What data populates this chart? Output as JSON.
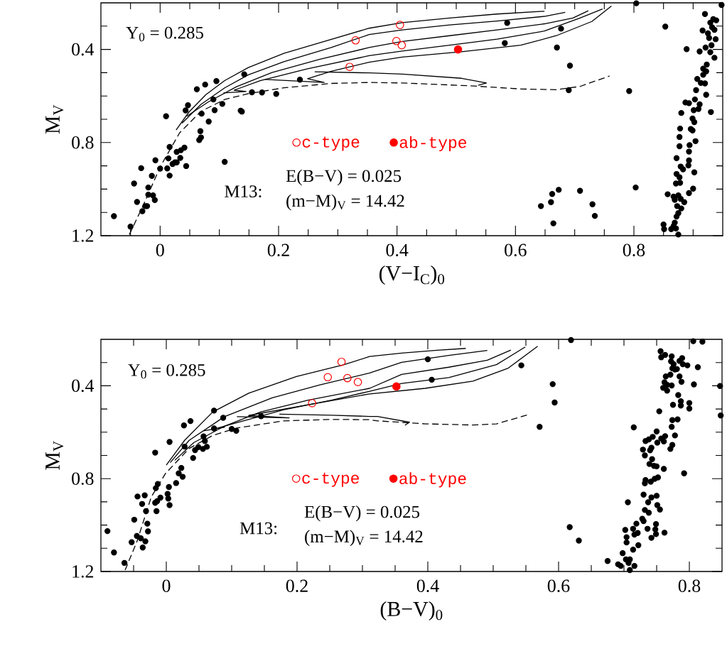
{
  "chart_data": [
    {
      "type": "scatter",
      "xlabel": "(V−I$_{C}$)$_{0}$",
      "ylabel": "M$_{V}$",
      "xlim": [
        -0.1,
        0.95
      ],
      "ylim": [
        1.2,
        0.2
      ],
      "xticks": [
        {
          "value": -0.05,
          "label": null
        },
        0,
        {
          "value": 0.05,
          "label": null
        },
        {
          "value": 0.1,
          "label": null
        },
        {
          "value": 0.15,
          "label": null
        },
        0.2,
        {
          "value": 0.25,
          "label": null
        },
        {
          "value": 0.3,
          "label": null
        },
        {
          "value": 0.35,
          "label": null
        },
        0.4,
        {
          "value": 0.45,
          "label": null
        },
        {
          "value": 0.5,
          "label": null
        },
        {
          "value": 0.55,
          "label": null
        },
        0.6,
        {
          "value": 0.65,
          "label": null
        },
        {
          "value": 0.7,
          "label": null
        },
        {
          "value": 0.75,
          "label": null
        },
        0.8,
        {
          "value": 0.85,
          "label": null
        },
        {
          "value": 0.9,
          "label": null
        }
      ],
      "yticks": [
        {
          "value": 0.3,
          "label": null
        },
        0.4,
        {
          "value": 0.5,
          "label": null
        },
        {
          "value": 0.6,
          "label": null
        },
        {
          "value": 0.7,
          "label": null
        },
        0.8,
        {
          "value": 0.9,
          "label": null
        },
        {
          "value": 1.0,
          "label": null
        },
        {
          "value": 1.1,
          "label": null
        },
        1.2
      ],
      "legend": "center",
      "annotations": [
        "Y$_{0}$ = 0.285",
        "M13:",
        "E(B−V) = 0.025",
        "(m−M)$_{V}$ = 14.42"
      ],
      "series": [
        {
          "type": "line",
          "color": "#000000",
          "line_style": "solid",
          "x": [
            0.027,
            0.049,
            0.077,
            0.109,
            0.149,
            0.209,
            0.269,
            0.353,
            0.409,
            0.489,
            0.569,
            0.649
          ],
          "values": [
            0.746,
            0.668,
            0.595,
            0.534,
            0.478,
            0.417,
            0.372,
            0.309,
            0.285,
            0.265,
            0.248,
            0.236
          ]
        },
        {
          "type": "line",
          "color": "#000000",
          "line_style": "solid",
          "x": [
            0.037,
            0.069,
            0.109,
            0.149,
            0.209,
            0.289,
            0.353,
            0.409,
            0.489,
            0.569,
            0.649,
            0.684
          ],
          "values": [
            0.717,
            0.636,
            0.565,
            0.509,
            0.453,
            0.392,
            0.336,
            0.316,
            0.295,
            0.278,
            0.258,
            0.241
          ]
        },
        {
          "type": "line",
          "color": "#000000",
          "line_style": "solid",
          "x": [
            0.045,
            0.081,
            0.129,
            0.189,
            0.269,
            0.353,
            0.409,
            0.489,
            0.569,
            0.649,
            0.697,
            0.723
          ],
          "values": [
            0.687,
            0.626,
            0.56,
            0.499,
            0.443,
            0.392,
            0.366,
            0.341,
            0.316,
            0.29,
            0.265,
            0.234
          ]
        },
        {
          "type": "line",
          "color": "#000000",
          "line_style": "solid",
          "x": [
            0.107,
            0.145,
            0.125,
            0.169,
            0.249,
            0.353,
            0.409,
            0.489,
            0.569,
            0.649,
            0.709,
            0.747
          ],
          "values": [
            0.587,
            0.581,
            0.575,
            0.534,
            0.483,
            0.427,
            0.407,
            0.382,
            0.356,
            0.321,
            0.265,
            0.226
          ]
        },
        {
          "type": "line",
          "color": "#000000",
          "line_style": "solid",
          "x": [
            0.177,
            0.277,
            0.249,
            0.289,
            0.353,
            0.409,
            0.509,
            0.609,
            0.669,
            0.729,
            0.762
          ],
          "values": [
            0.529,
            0.542,
            0.526,
            0.494,
            0.455,
            0.433,
            0.41,
            0.382,
            0.341,
            0.28,
            0.214
          ]
        },
        {
          "type": "line",
          "color": "#000000",
          "line_style": "solid",
          "x": [
            0.261,
            0.353,
            0.409,
            0.509,
            0.551,
            0.537
          ],
          "values": [
            0.496,
            0.501,
            0.506,
            0.524,
            0.544,
            0.554
          ]
        },
        {
          "type": "line",
          "color": "#000000",
          "line_style": "dashed",
          "x": [
            -0.052,
            -0.031,
            0.001,
            0.033,
            0.069,
            0.109,
            0.149,
            0.209,
            0.289,
            0.353,
            0.409,
            0.529,
            0.609,
            0.669,
            0.709,
            0.759
          ],
          "values": [
            1.195,
            1.083,
            0.9,
            0.758,
            0.666,
            0.615,
            0.59,
            0.565,
            0.546,
            0.542,
            0.544,
            0.557,
            0.57,
            0.573,
            0.559,
            0.514
          ]
        },
        {
          "color": "#000000",
          "marker": "circle",
          "x": [
            -0.078,
            -0.05,
            -0.044,
            -0.032,
            -0.039,
            -0.03,
            -0.025,
            -0.022,
            -0.02,
            -0.02,
            -0.014,
            -0.012,
            -0.009,
            -0.008,
            0.0,
            0.01,
            0.012,
            0.014,
            0.016,
            0.016,
            0.021,
            0.025,
            0.028,
            0.028,
            0.034,
            0.035,
            0.041,
            0.044,
            0.043,
            0.047,
            0.062,
            0.076,
            0.095,
            0.09,
            0.092,
            0.082,
            0.068,
            0.069,
            0.066,
            0.07,
            0.105,
            0.109,
            0.136,
            0.138,
            0.142,
            0.155,
            0.172,
            0.196,
            0.236,
            0.586,
            0.582,
            0.677,
            0.67,
            0.692,
            0.69,
            0.792,
            0.804,
            0.853,
            0.889,
            0.948,
            0.643,
            0.66,
            0.662,
            0.673,
            0.664,
            0.709,
            0.73,
            0.734,
            0.803,
            0.92,
            0.929,
            0.934,
            0.939,
            0.932,
            0.916,
            0.936,
            0.925,
            0.938,
            0.927,
            0.931,
            0.921,
            0.911,
            0.929,
            0.936,
            0.923,
            0.917,
            0.922,
            0.917,
            0.907,
            0.913,
            0.92,
            0.905,
            0.922,
            0.903,
            0.887,
            0.893,
            0.911,
            0.909,
            0.901,
            0.93,
            0.88,
            0.899,
            0.902,
            0.896,
            0.878,
            0.899,
            0.877,
            0.904,
            0.894,
            0.877,
            0.893,
            0.872,
            0.893,
            0.879,
            0.892,
            0.902,
            0.883,
            0.872,
            0.877,
            0.871,
            0.878,
            0.9,
            0.893,
            0.857,
            0.867,
            0.875,
            0.879,
            0.869,
            0.885,
            0.873,
            0.88,
            0.875,
            0.872,
            0.869,
            0.85,
            0.867,
            0.851,
            0.863,
            0.871,
            0.875
          ],
          "values": [
            1.116,
            1.161,
            0.976,
            0.91,
            1.055,
            1.095,
            1.073,
            1.073,
            0.993,
            1.024,
            0.943,
            1.027,
            1.047,
            0.876,
            0.912,
            0.687,
            0.911,
            0.868,
            0.942,
            0.819,
            0.892,
            0.885,
            0.84,
            0.885,
            0.866,
            0.833,
            0.822,
            0.901,
            0.662,
            0.64,
            0.571,
            0.551,
            0.536,
            0.615,
            0.661,
            0.71,
            0.751,
            0.778,
            0.789,
            0.676,
            0.634,
            0.883,
            0.663,
            0.667,
            0.507,
            0.584,
            0.585,
            0.591,
            0.53,
            0.286,
            0.373,
            0.311,
            0.392,
            0.47,
            0.575,
            0.579,
            0.202,
            0.302,
            0.399,
            0.209,
            1.073,
            1.056,
            1.021,
            1.003,
            1.147,
            1.007,
            1.065,
            1.115,
            0.993,
            0.248,
            0.285,
            0.27,
            0.275,
            0.305,
            0.319,
            0.316,
            0.331,
            0.356,
            0.351,
            0.382,
            0.392,
            0.409,
            0.412,
            0.436,
            0.465,
            0.483,
            0.494,
            0.509,
            0.527,
            0.544,
            0.546,
            0.575,
            0.595,
            0.615,
            0.628,
            0.631,
            0.636,
            0.656,
            0.661,
            0.669,
            0.673,
            0.697,
            0.712,
            0.742,
            0.74,
            0.748,
            0.776,
            0.794,
            0.811,
            0.816,
            0.839,
            0.867,
            0.877,
            0.903,
            0.898,
            0.928,
            0.915,
            0.935,
            0.949,
            0.976,
            0.973,
            0.998,
            1.017,
            1.022,
            1.032,
            1.027,
            1.042,
            1.046,
            1.056,
            1.073,
            1.083,
            1.103,
            1.118,
            1.144,
            1.152,
            1.159,
            1.172,
            1.172,
            1.169,
            1.195
          ]
        },
        {
          "name": "c-type",
          "color": "#ff0000",
          "marker": "circle",
          "x": [
            0.32,
            0.33,
            0.399,
            0.405,
            0.408
          ],
          "values": [
            0.475,
            0.361,
            0.364,
            0.295,
            0.382
          ]
        },
        {
          "name": "ab-type",
          "color": "#ff0000",
          "marker": "circle",
          "x": [
            0.503
          ],
          "values": [
            0.4
          ]
        }
      ]
    },
    {
      "type": "scatter",
      "xlabel": "(B−V)$_{0}$",
      "ylabel": "M$_{V}$",
      "xlim": [
        -0.1,
        0.85
      ],
      "ylim": [
        1.2,
        0.2
      ],
      "xticks": [
        {
          "value": -0.05,
          "label": null
        },
        0,
        {
          "value": 0.05,
          "label": null
        },
        {
          "value": 0.1,
          "label": null
        },
        {
          "value": 0.15,
          "label": null
        },
        0.2,
        {
          "value": 0.25,
          "label": null
        },
        {
          "value": 0.3,
          "label": null
        },
        {
          "value": 0.35,
          "label": null
        },
        0.4,
        {
          "value": 0.45,
          "label": null
        },
        {
          "value": 0.5,
          "label": null
        },
        {
          "value": 0.55,
          "label": null
        },
        0.6,
        {
          "value": 0.65,
          "label": null
        },
        {
          "value": 0.7,
          "label": null
        },
        {
          "value": 0.75,
          "label": null
        },
        0.8
      ],
      "yticks": [
        {
          "value": 0.3,
          "label": null
        },
        0.4,
        {
          "value": 0.5,
          "label": null
        },
        {
          "value": 0.6,
          "label": null
        },
        {
          "value": 0.7,
          "label": null
        },
        0.8,
        {
          "value": 0.9,
          "label": null
        },
        {
          "value": 1.0,
          "label": null
        },
        {
          "value": 1.1,
          "label": null
        },
        1.2
      ],
      "legend": "center",
      "annotations": [
        "Y$_{0}$ = 0.285",
        "M13:",
        "E(B−V) = 0.025",
        "(m−M)$_{V}$ = 14.42"
      ],
      "series": [
        {
          "type": "line",
          "color": "#000000",
          "line_style": "solid",
          "x": [
            0.0,
            0.028,
            0.071,
            0.126,
            0.199,
            0.271,
            0.311,
            0.36,
            0.414,
            0.458
          ],
          "values": [
            0.742,
            0.635,
            0.513,
            0.432,
            0.36,
            0.31,
            0.274,
            0.259,
            0.247,
            0.239
          ]
        },
        {
          "type": "line",
          "color": "#000000",
          "line_style": "solid",
          "x": [
            0.006,
            0.035,
            0.089,
            0.162,
            0.235,
            0.311,
            0.36,
            0.432,
            0.491
          ],
          "values": [
            0.731,
            0.635,
            0.533,
            0.452,
            0.396,
            0.345,
            0.299,
            0.269,
            0.248
          ]
        },
        {
          "type": "line",
          "color": "#000000",
          "line_style": "solid",
          "x": [
            0.013,
            0.042,
            0.089,
            0.144,
            0.217,
            0.311,
            0.36,
            0.432,
            0.491,
            0.527
          ],
          "values": [
            0.721,
            0.645,
            0.574,
            0.513,
            0.462,
            0.411,
            0.351,
            0.32,
            0.29,
            0.246
          ]
        },
        {
          "type": "line",
          "color": "#000000",
          "line_style": "solid",
          "x": [
            0.057,
            0.089,
            0.075,
            0.108,
            0.18,
            0.253,
            0.309,
            0.36,
            0.432,
            0.505,
            0.549
          ],
          "values": [
            0.594,
            0.579,
            0.585,
            0.559,
            0.503,
            0.462,
            0.425,
            0.39,
            0.365,
            0.309,
            0.233
          ]
        },
        {
          "type": "line",
          "color": "#000000",
          "line_style": "solid",
          "x": [
            0.108,
            0.188,
            0.126,
            0.217,
            0.309,
            0.396,
            0.469,
            0.523,
            0.568
          ],
          "values": [
            0.533,
            0.538,
            0.528,
            0.482,
            0.436,
            0.411,
            0.38,
            0.324,
            0.23
          ]
        },
        {
          "type": "line",
          "color": "#000000",
          "line_style": "solid",
          "x": [
            0.173,
            0.253,
            0.311,
            0.323,
            0.372,
            0.365
          ],
          "values": [
            0.522,
            0.527,
            0.532,
            0.532,
            0.557,
            0.57
          ]
        },
        {
          "type": "line",
          "color": "#000000",
          "line_style": "dashed",
          "x": [
            -0.063,
            -0.045,
            -0.023,
            -0.001,
            0.035,
            0.071,
            0.108,
            0.18,
            0.253,
            0.311,
            0.323,
            0.396,
            0.469,
            0.505,
            0.552
          ],
          "values": [
            1.194,
            1.072,
            0.879,
            0.777,
            0.67,
            0.614,
            0.582,
            0.551,
            0.545,
            0.546,
            0.551,
            0.564,
            0.569,
            0.564,
            0.526
          ]
        },
        {
          "color": "#000000",
          "marker": "circle",
          "x": [
            -0.09,
            -0.08,
            -0.064,
            -0.053,
            -0.049,
            -0.045,
            -0.044,
            -0.039,
            -0.037,
            -0.036,
            -0.033,
            -0.032,
            -0.031,
            -0.029,
            -0.028,
            -0.017,
            -0.016,
            -0.017,
            -0.015,
            -0.014,
            -0.013,
            -0.009,
            0.002,
            0.003,
            0.004,
            0.005,
            0.005,
            0.015,
            0.019,
            0.023,
            0.025,
            0.027,
            0.028,
            0.037,
            0.041,
            0.044,
            0.049,
            0.056,
            0.057,
            0.059,
            0.062,
            0.073,
            0.073,
            0.087,
            0.1,
            0.107,
            0.145,
            0.4,
            0.406,
            0.543,
            0.591,
            0.594,
            0.571,
            0.619,
            0.617,
            0.631,
            0.806,
            0.82,
            0.847,
            0.848,
            0.813,
            0.807,
            0.8,
            0.8,
            0.792,
            0.715,
            0.706,
            0.675,
            0.756,
            0.763,
            0.757,
            0.773,
            0.772,
            0.785,
            0.789,
            0.776,
            0.79,
            0.797,
            0.774,
            0.781,
            0.778,
            0.764,
            0.771,
            0.785,
            0.788,
            0.762,
            0.766,
            0.773,
            0.76,
            0.766,
            0.783,
            0.787,
            0.787,
            0.775,
            0.754,
            0.774,
            0.782,
            0.773,
            0.778,
            0.763,
            0.757,
            0.761,
            0.75,
            0.744,
            0.738,
            0.733,
            0.751,
            0.774,
            0.771,
            0.742,
            0.729,
            0.74,
            0.732,
            0.743,
            0.739,
            0.746,
            0.75,
            0.761,
            0.752,
            0.747,
            0.741,
            0.733,
            0.732,
            0.73,
            0.742,
            0.75,
            0.737,
            0.751,
            0.755,
            0.732,
            0.738,
            0.728,
            0.73,
            0.749,
            0.719,
            0.714,
            0.702,
            0.736,
            0.748,
            0.721,
            0.716,
            0.749,
            0.762,
            0.704,
            0.742,
            0.704,
            0.722,
            0.714,
            0.698,
            0.703,
            0.709,
            0.707,
            0.691,
            0.695,
            0.716,
            0.709
          ],
          "values": [
            1.026,
            1.118,
            1.163,
            1.074,
            0.977,
            1.047,
            0.877,
            1.057,
            0.909,
            1.097,
            0.872,
            1.07,
            0.94,
            0.994,
            1.027,
            0.688,
            0.841,
            0.904,
            0.94,
            0.897,
            0.823,
            0.882,
            0.866,
            0.886,
            0.836,
            0.642,
            0.914,
            0.819,
            0.777,
            0.754,
            0.792,
            0.571,
            0.662,
            0.552,
            0.711,
            0.677,
            0.664,
            0.672,
            0.618,
            0.638,
            0.663,
            0.507,
            0.584,
            0.538,
            0.586,
            0.594,
            0.531,
            0.286,
            0.374,
            0.312,
            0.393,
            0.472,
            0.577,
            0.203,
            1.009,
            1.067,
            0.208,
            0.21,
            0.401,
            0.528,
            0.32,
            0.394,
            0.474,
            0.498,
            0.777,
            0.579,
            0.902,
            1.155,
            0.251,
            0.267,
            0.277,
            0.273,
            0.295,
            0.293,
            0.281,
            0.307,
            0.307,
            0.312,
            0.325,
            0.328,
            0.33,
            0.36,
            0.352,
            0.36,
            0.383,
            0.385,
            0.396,
            0.399,
            0.409,
            0.421,
            0.44,
            0.467,
            0.485,
            0.482,
            0.51,
            0.548,
            0.545,
            0.577,
            0.614,
            0.617,
            0.627,
            0.64,
            0.597,
            0.62,
            0.631,
            0.638,
            0.645,
            0.655,
            0.672,
            0.667,
            0.675,
            0.678,
            0.7,
            0.716,
            0.737,
            0.745,
            0.747,
            0.758,
            0.795,
            0.801,
            0.813,
            0.806,
            0.82,
            0.869,
            0.881,
            0.874,
            0.902,
            0.914,
            0.933,
            0.935,
            0.947,
            0.973,
            0.983,
            0.996,
            0.994,
            1.016,
            1.021,
            1.016,
            1.019,
            1.034,
            1.041,
            1.039,
            1.033,
            1.052,
            1.055,
            1.075,
            1.087,
            1.106,
            1.121,
            1.148,
            1.148,
            1.163,
            1.169,
            1.176,
            1.176,
            1.194
          ]
        },
        {
          "name": "c-type",
          "color": "#ff0000",
          "marker": "circle",
          "x": [
            0.223,
            0.247,
            0.268,
            0.277,
            0.293
          ],
          "values": [
            0.475,
            0.363,
            0.297,
            0.367,
            0.384
          ]
        },
        {
          "name": "ab-type",
          "color": "#ff0000",
          "marker": "circle",
          "x": [
            0.352
          ],
          "values": [
            0.403
          ]
        }
      ]
    }
  ]
}
